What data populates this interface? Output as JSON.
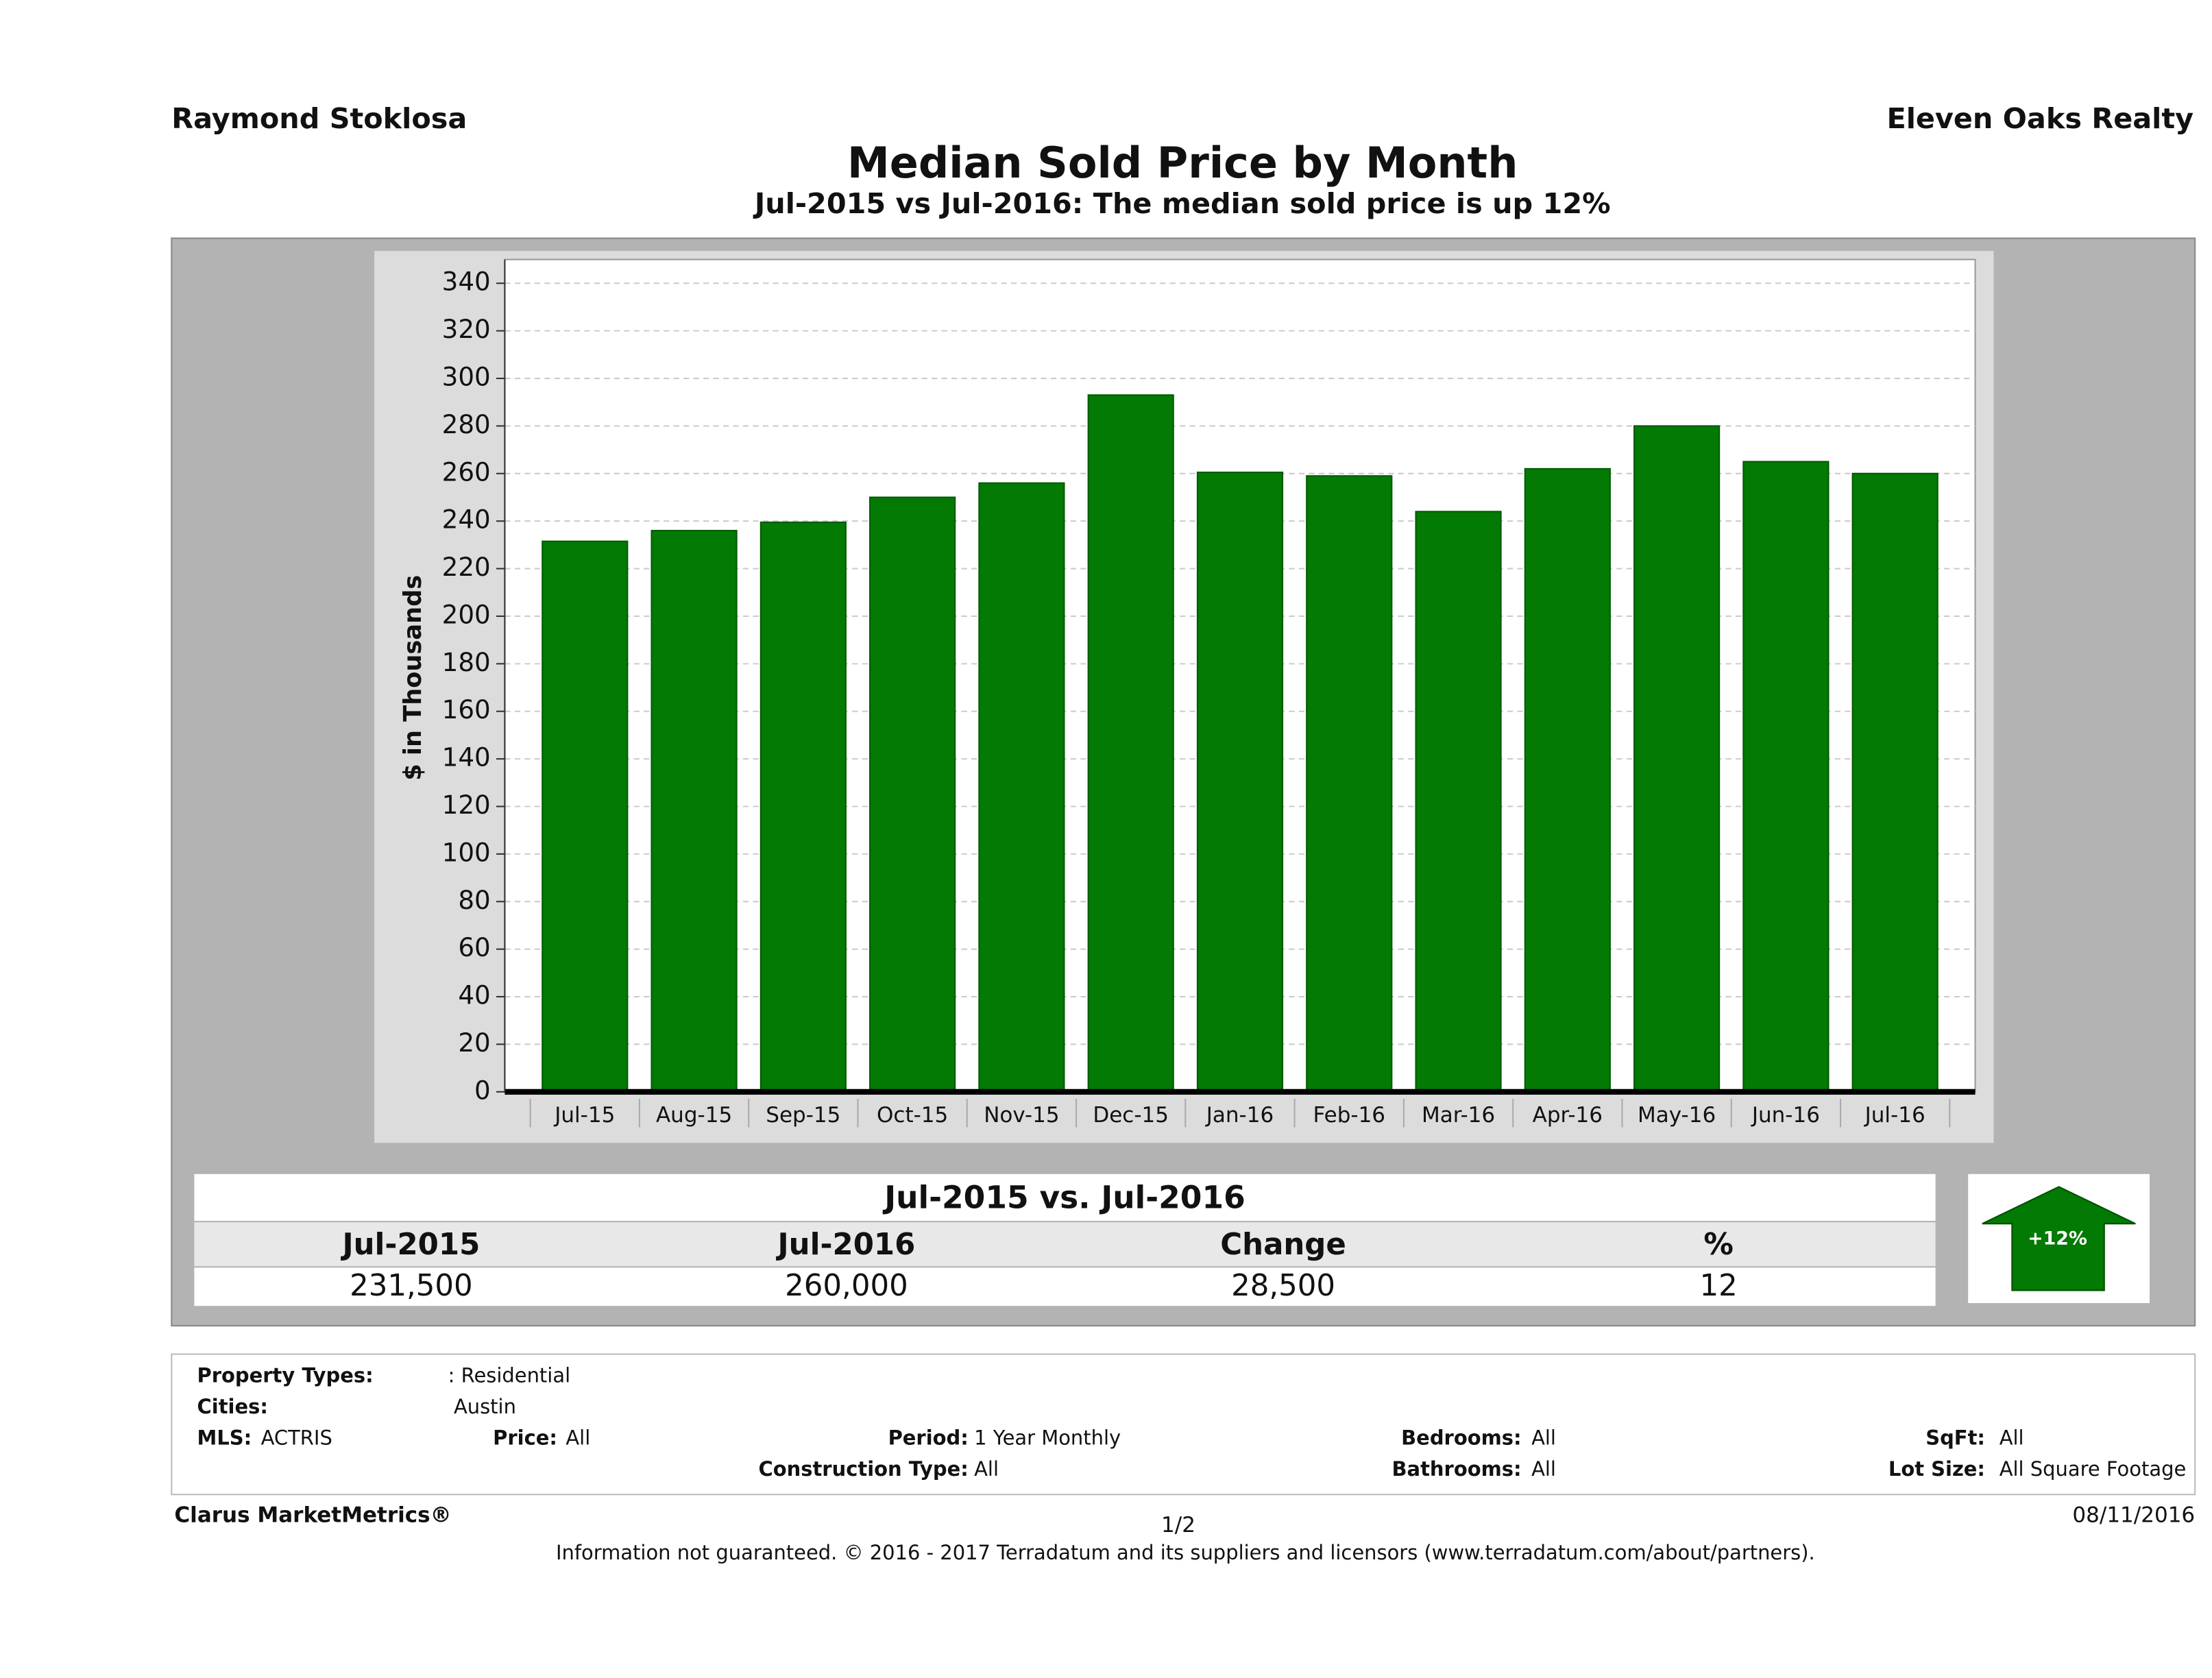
{
  "header": {
    "agent": "Raymond Stoklosa",
    "company": "Eleven Oaks Realty"
  },
  "chart_data": {
    "type": "bar",
    "title": "Median Sold Price by Month",
    "subtitle": "Jul-2015 vs Jul-2016: The median sold price is up 12%",
    "y_label": "$ in Thousands",
    "categories": [
      "Jul-15",
      "Aug-15",
      "Sep-15",
      "Oct-15",
      "Nov-15",
      "Dec-15",
      "Jan-16",
      "Feb-16",
      "Mar-16",
      "Apr-16",
      "May-16",
      "Jun-16",
      "Jul-16"
    ],
    "values": [
      231.5,
      236,
      239.5,
      250,
      256,
      293,
      260.5,
      259,
      244,
      262,
      280,
      265,
      260
    ],
    "color": "#037a03",
    "ylim": [
      0,
      350
    ],
    "yticks": [
      0,
      20,
      40,
      60,
      80,
      100,
      120,
      140,
      160,
      180,
      200,
      220,
      240,
      260,
      280,
      300,
      320,
      340
    ],
    "grid": true
  },
  "summary": {
    "title": "Jul-2015 vs. Jul-2016",
    "headers": [
      "Jul-2015",
      "Jul-2016",
      "Change",
      "%"
    ],
    "values": [
      "231,500",
      "260,000",
      "28,500",
      "12"
    ],
    "badge": "+12%"
  },
  "criteria": [
    {
      "label": "Property Types:",
      "value": ": Residential"
    },
    {
      "label": "Cities:",
      "value": "Austin"
    },
    {
      "label": "MLS:",
      "value": "ACTRIS"
    },
    {
      "label": "Price:",
      "value": "All"
    },
    {
      "label": "Period:",
      "value": "1 Year Monthly"
    },
    {
      "label": "Bedrooms:",
      "value": "All"
    },
    {
      "label": "SqFt:",
      "value": "All"
    },
    {
      "label": "Construction Type:",
      "value": "All"
    },
    {
      "label": "Bathrooms:",
      "value": "All"
    },
    {
      "label": "Lot Size:",
      "value": "All Square Footage"
    }
  ],
  "footer": {
    "brand": "Clarus MarketMetrics®",
    "page": "1/2",
    "date": "08/11/2016",
    "disclaimer": "Information not guaranteed. © 2016 - 2017 Terradatum and its suppliers and licensors (www.terradatum.com/about/partners)."
  }
}
